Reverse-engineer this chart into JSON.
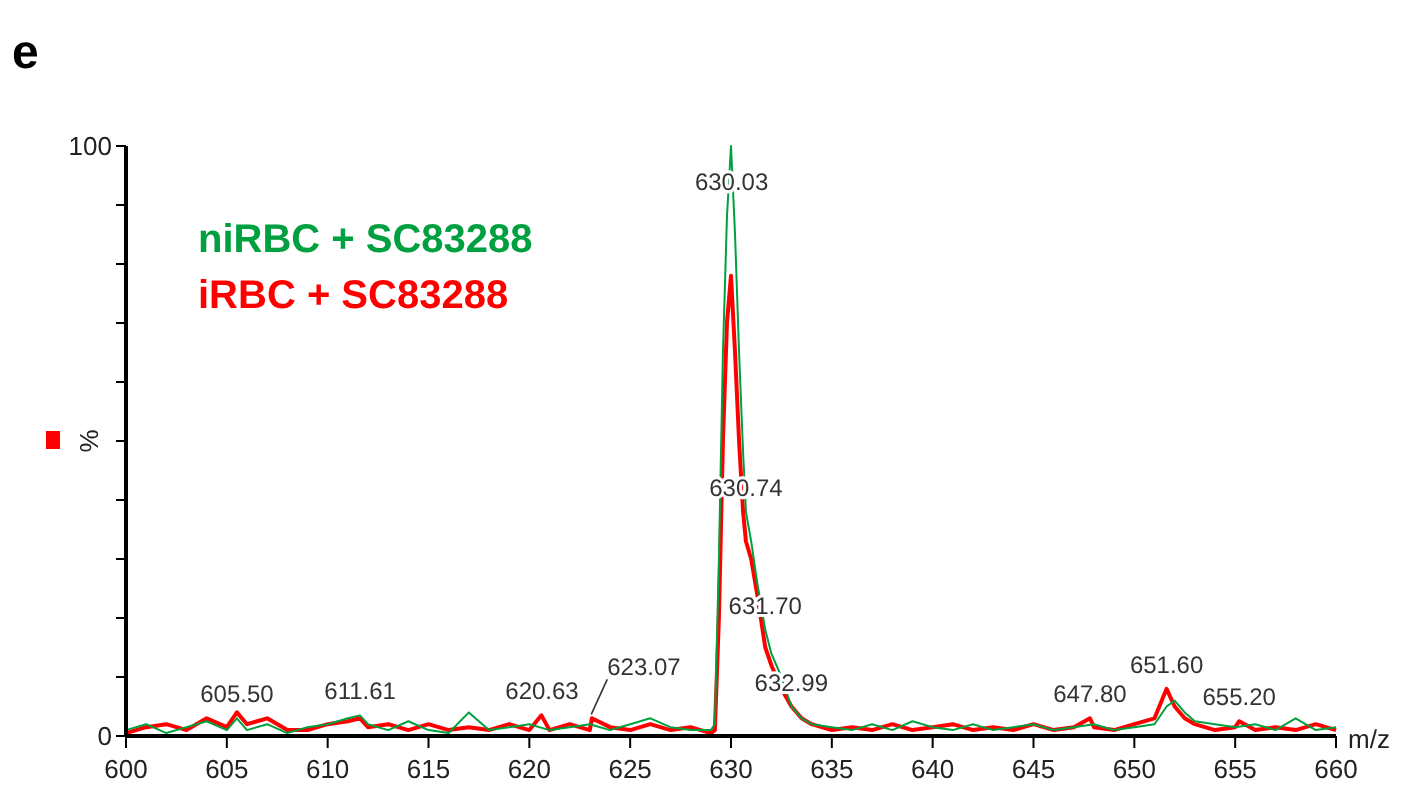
{
  "chart_data": {
    "type": "line",
    "title": "e",
    "xlabel": "m/z",
    "ylabel": "%",
    "legend": "top left",
    "xlim": [
      600,
      660
    ],
    "ylim": [
      0,
      100
    ],
    "xticks": [
      600,
      605,
      610,
      615,
      620,
      625,
      630,
      635,
      640,
      645,
      650,
      655,
      660
    ],
    "yticks": [
      0,
      {
        "value": 10,
        "label": null
      },
      {
        "value": 20,
        "label": null
      },
      {
        "value": 30,
        "label": null
      },
      {
        "value": 40,
        "label": null
      },
      {
        "value": 50,
        "label": null
      },
      {
        "value": 60,
        "label": null
      },
      {
        "value": 70,
        "label": null
      },
      {
        "value": 80,
        "label": null
      },
      {
        "value": 90,
        "label": null
      },
      100
    ],
    "series": [
      {
        "name": "niRBC + SC83288",
        "color": "#00a040",
        "x": [
          600,
          601,
          602,
          603,
          604,
          605,
          605.5,
          606,
          607,
          608,
          609,
          610,
          611,
          611.6,
          612,
          613,
          614,
          615,
          616,
          617,
          618,
          619,
          620,
          621,
          622,
          623,
          624,
          625,
          626,
          627,
          628,
          629,
          629.2,
          629.4,
          629.6,
          629.8,
          630,
          630.2,
          630.4,
          630.6,
          630.74,
          631,
          631.3,
          631.7,
          632,
          632.5,
          633,
          633.5,
          634,
          635,
          636,
          637,
          638,
          639,
          640,
          641,
          642,
          643,
          644,
          645,
          646,
          647,
          648,
          649,
          650,
          651,
          651.6,
          652,
          652.5,
          653,
          654,
          655,
          656,
          657,
          658,
          659,
          660
        ],
        "values": [
          1,
          2,
          0.5,
          1.5,
          2.5,
          1,
          3,
          1,
          2,
          0.5,
          1.5,
          2,
          3,
          3.5,
          2,
          1,
          2.5,
          1,
          0.5,
          4,
          1,
          1.5,
          2,
          1,
          1.5,
          2,
          1,
          2,
          3,
          1.5,
          1,
          1,
          2,
          30,
          65,
          88,
          100,
          85,
          65,
          48,
          38,
          33,
          26,
          18,
          14,
          10,
          5,
          3,
          2,
          1.5,
          1,
          2,
          1,
          2.5,
          1.5,
          1,
          2,
          1,
          1.5,
          2,
          1,
          1.5,
          2,
          1,
          1.5,
          2,
          5,
          6,
          4,
          2.5,
          2,
          1.5,
          2,
          1,
          3,
          1,
          1.5
        ]
      },
      {
        "name": "iRBC + SC83288",
        "color": "#ff0000",
        "x": [
          600,
          601,
          602,
          603,
          604,
          605,
          605.5,
          606,
          607,
          608,
          609,
          610,
          611,
          611.6,
          612,
          613,
          614,
          615,
          616,
          617,
          618,
          619,
          620,
          620.6,
          621,
          622,
          623,
          623.1,
          624,
          625,
          626,
          627,
          628,
          629,
          629.2,
          629.4,
          629.6,
          629.8,
          630,
          630.2,
          630.4,
          630.6,
          630.74,
          631,
          631.3,
          631.7,
          632,
          632.5,
          633,
          633.5,
          634,
          635,
          636,
          637,
          638,
          639,
          640,
          641,
          642,
          643,
          644,
          645,
          646,
          647,
          647.8,
          648,
          649,
          650,
          651,
          651.6,
          652,
          652.5,
          653,
          654,
          655,
          655.2,
          656,
          657,
          658,
          659,
          660
        ],
        "values": [
          0.5,
          1.5,
          2,
          1,
          3,
          1.5,
          4,
          2,
          3,
          1,
          1,
          2,
          2.5,
          3,
          1.5,
          2,
          1,
          2,
          1,
          1.5,
          1,
          2,
          1,
          3.5,
          1,
          2,
          1,
          3,
          1.5,
          1,
          2,
          1,
          1.5,
          0.5,
          1,
          20,
          50,
          70,
          78,
          65,
          50,
          38,
          33,
          30,
          24,
          15,
          12,
          8,
          5,
          3,
          2,
          1,
          1.5,
          1,
          2,
          1,
          1.5,
          2,
          1,
          1.5,
          1,
          2,
          1,
          1.5,
          3,
          1.5,
          1,
          2,
          3,
          8,
          5,
          3,
          2,
          1,
          1.5,
          2.5,
          1,
          1.5,
          1,
          2,
          1
        ]
      }
    ],
    "annotations": [
      {
        "text": "605.50",
        "x": 605.5,
        "y": 3
      },
      {
        "text": "611.61",
        "x": 611.61,
        "y": 3.5
      },
      {
        "text": "620.63",
        "x": 620.63,
        "y": 3.5
      },
      {
        "text": "623.07",
        "x": 623.07,
        "y": 3
      },
      {
        "text": "630.03",
        "x": 630.03,
        "y": 100
      },
      {
        "text": "630.74",
        "x": 630.74,
        "y": 38
      },
      {
        "text": "631.70",
        "x": 631.7,
        "y": 18
      },
      {
        "text": "632.99",
        "x": 632.99,
        "y": 5
      },
      {
        "text": "647.80",
        "x": 647.8,
        "y": 3
      },
      {
        "text": "651.60",
        "x": 651.6,
        "y": 8
      },
      {
        "text": "655.20",
        "x": 655.2,
        "y": 2.5
      }
    ]
  }
}
